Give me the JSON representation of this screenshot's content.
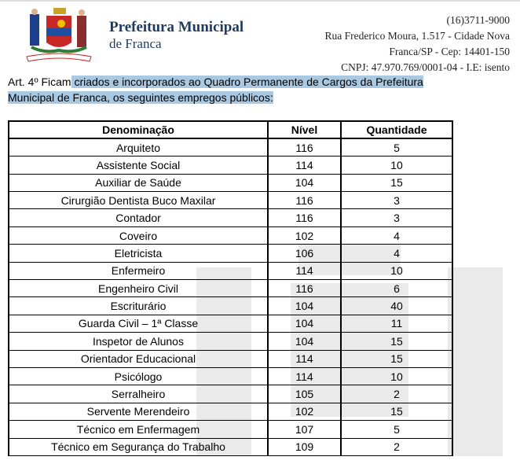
{
  "header": {
    "logo_motto": "GENTI - NOBILI - INFLUENTAE - FIDELIS",
    "org_line1": "Prefeitura Municipal",
    "org_line2": "de Franca",
    "phone": "(16)3711-9000",
    "address": "Rua Frederico Moura, 1.517 - Cidade Nova",
    "city": "Franca/SP - Cep: 14401-150",
    "cnpj": "CNPJ: 47.970.769/0001-04 - I.E: isento"
  },
  "article": {
    "prefix": "Art. 4º Ficam",
    "highlighted": " criados e incorporados ao Quadro Permanente de Cargos da Prefeitura Municipal de Franca, os seguintes empregos públicos:",
    "highlight_color": "#a9c9e2"
  },
  "table": {
    "headers": [
      "Denominação",
      "Nível",
      "Quantidade"
    ],
    "rows": [
      [
        "Arquiteto",
        "116",
        "5"
      ],
      [
        "Assistente Social",
        "114",
        "10"
      ],
      [
        "Auxiliar de Saúde",
        "104",
        "15"
      ],
      [
        "Cirurgião Dentista Buco Maxilar",
        "116",
        "3"
      ],
      [
        "Contador",
        "116",
        "3"
      ],
      [
        "Coveiro",
        "102",
        "4"
      ],
      [
        "Eletricista",
        "106",
        "4"
      ],
      [
        "Enfermeiro",
        "114",
        "10"
      ],
      [
        "Engenheiro Civil",
        "116",
        "6"
      ],
      [
        "Escriturário",
        "104",
        "40"
      ],
      [
        "Guarda Civil – 1ª Classe",
        "104",
        "11"
      ],
      [
        "Inspetor de Alunos",
        "104",
        "15"
      ],
      [
        "Orientador Educacional",
        "114",
        "15"
      ],
      [
        "Psicólogo",
        "114",
        "10"
      ],
      [
        "Serralheiro",
        "105",
        "2"
      ],
      [
        "Servente Merendeiro",
        "102",
        "15"
      ],
      [
        "Técnico em Enfermagem",
        "107",
        "5"
      ],
      [
        "Técnico em Segurança do Trabalho",
        "109",
        "2"
      ]
    ]
  }
}
